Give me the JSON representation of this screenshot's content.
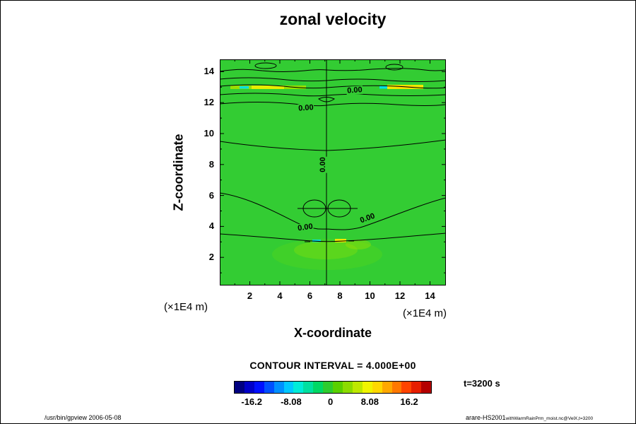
{
  "title": "zonal velocity",
  "plot": {
    "bg_color": "#33cc33",
    "x_axis": {
      "label": "X-coordinate",
      "unit": "(×1E4 m)"
    },
    "y_axis": {
      "label": "Z-coordinate",
      "unit": "(×1E4 m)"
    },
    "contour_labels": [
      {
        "text": "0.00"
      },
      {
        "text": "0.00"
      },
      {
        "text": "0.00"
      },
      {
        "text": "0.00"
      },
      {
        "text": "0.00"
      }
    ]
  },
  "legend": {
    "contour_interval_text": "CONTOUR INTERVAL = 4.000E+00",
    "time_label": "t=3200 s",
    "colorbar": {
      "tick_labels": [
        "-16.2",
        "-8.08",
        "0",
        "8.08",
        "16.2"
      ],
      "colors": [
        "#000080",
        "#0000c8",
        "#0010ff",
        "#0050ff",
        "#0090ff",
        "#00c8ff",
        "#00ecd8",
        "#00e0a0",
        "#00d864",
        "#2ecc2e",
        "#5ad000",
        "#8cdc00",
        "#bee800",
        "#f0f400",
        "#ffd800",
        "#ffa800",
        "#ff7800",
        "#ff4400",
        "#e61e00",
        "#b40000"
      ]
    }
  },
  "footer": {
    "left": "/usr/bin/gpview 2006-05-08",
    "right_main": "arare-HS2001",
    "right_sub": "withWarmRainPrm_moist.nc@VelX,t=3200"
  },
  "chart_data": {
    "type": "heatmap",
    "subtype": "filled contour plot (x-z cross section)",
    "title": "zonal velocity",
    "xlabel": "X-coordinate (×1E4 m)",
    "ylabel": "Z-coordinate (×1E4 m)",
    "x_ticks": [
      2,
      4,
      6,
      8,
      10,
      12,
      14
    ],
    "y_ticks": [
      2,
      4,
      6,
      8,
      10,
      12,
      14
    ],
    "xlim": [
      0,
      15
    ],
    "ylim": [
      0,
      15
    ],
    "contour_interval": 4.0,
    "contour_label_value": "0.00",
    "colorbar_ticks": [
      -16.2,
      -8.08,
      0,
      8.08,
      16.2
    ],
    "time": "t=3200 s",
    "grid": false,
    "legend_position": "bottom colorbar",
    "field_summary": "Zonal velocity is near zero (uniform green) over most of the domain. Zero contours: wavy horizontal lines near z≈12.5–15 with two small closed ovals near the top, a shallow arc near z≈9–10, an undulating line with a double-lobed closed contour near x≈6–8 z≈5, and a long line near z≈3.5. A vertical zero contour runs at x≈7.1. Thin positive (yellow) streaks near z≈13 at x≈1–6 and x≈10.5–13.5 with small negative (cyan) patches beside them; small cyan/yellow patches near x≈6–8, z≈3.4."
  }
}
